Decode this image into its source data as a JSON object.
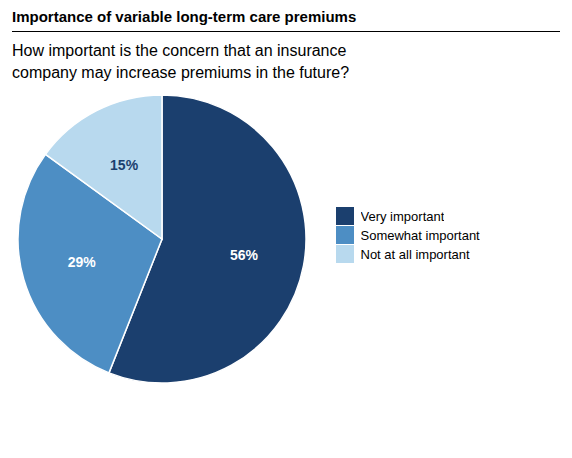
{
  "chart_data": {
    "type": "pie",
    "title": "Importance of variable long-term care premiums",
    "subtitle": "How important is the concern that an insurance\ncompany may increase premiums in the future?",
    "categories": [
      "Very important",
      "Somewhat important",
      "Not at all important"
    ],
    "values": [
      56,
      29,
      15
    ],
    "value_labels": [
      "56%",
      "29%",
      "15%"
    ],
    "colors": [
      "#1b3f6e",
      "#4d8ec4",
      "#b8d9ee"
    ],
    "data_labels": true,
    "legend": "right"
  }
}
